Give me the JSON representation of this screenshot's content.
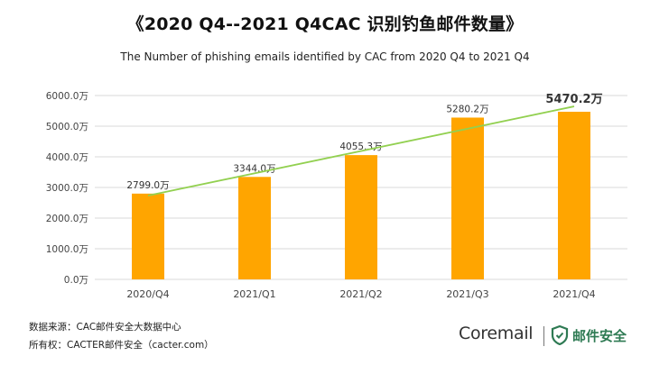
{
  "title": "《2020 Q4--2021 Q4CAC 识别钓鱼邮件数量》",
  "subtitle": "The Number of phishing emails identified by CAC from 2020 Q4 to 2021 Q4",
  "footer": {
    "source": "数据来源：CAC邮件安全大数据中心",
    "copyright": "所有权：CACTER邮件安全（cacter.com）"
  },
  "brand": {
    "name": "Coremail",
    "cn": "邮件安全",
    "logo_icon": "shield-icon"
  },
  "colors": {
    "bar": "#FFA500",
    "trendline": "#92D050",
    "grid": "#D9D9D9",
    "brand_green": "#2E7A53"
  },
  "chart_data": {
    "type": "bar",
    "categories": [
      "2020/Q4",
      "2021/Q1",
      "2021/Q2",
      "2021/Q3",
      "2021/Q4"
    ],
    "values": [
      2799.0,
      3344.0,
      4055.3,
      5280.2,
      5470.2
    ],
    "data_labels": [
      "2799.0万",
      "3344.0万",
      "4055.3万",
      "5280.2万",
      "5470.2万"
    ],
    "highlight_index": 4,
    "ylim": [
      0,
      6000
    ],
    "yticks": [
      0,
      1000,
      2000,
      3000,
      4000,
      5000,
      6000
    ],
    "ytick_labels": [
      "0.0万",
      "1000.0万",
      "2000.0万",
      "3000.0万",
      "4000.0万",
      "5000.0万",
      "6000.0万"
    ],
    "trendline": {
      "type": "linear",
      "color": "#92D050"
    },
    "grid": true,
    "xlabel": "",
    "ylabel": ""
  }
}
